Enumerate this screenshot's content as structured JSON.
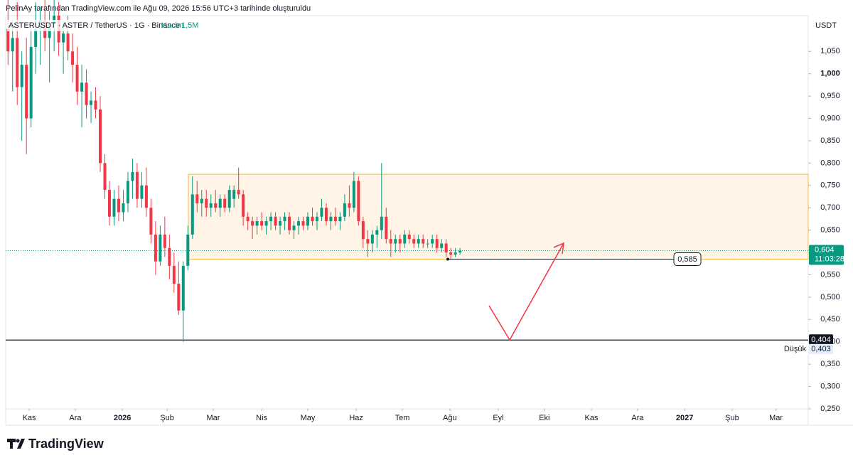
{
  "chart_data": {
    "type": "candlestick",
    "title": "PelinAy tarafından TradingView.com ile Ağu 09, 2026 15:56 UTC+3 tarihinde oluşturuldu",
    "symbol": "ASTERUSDT · ASTER / TetherUS · 1G · Binance",
    "volume_name": "Hacim",
    "volume": {
      "value": 1500000,
      "label": "1,5M"
    },
    "currency": "USDT",
    "brand": "TradingView",
    "up_color": "#089981",
    "down_color": "#f23645",
    "ohlc": [
      [
        1.1,
        1.18,
        1.02,
        1.05
      ],
      [
        1.05,
        1.12,
        0.96,
        1.08
      ],
      [
        1.08,
        1.16,
        0.93,
        0.97
      ],
      [
        0.97,
        1.05,
        0.85,
        1.02
      ],
      [
        1.02,
        1.08,
        0.82,
        0.9
      ],
      [
        0.9,
        1.1,
        0.88,
        1.06
      ],
      [
        1.06,
        1.16,
        1.0,
        1.1
      ],
      [
        1.1,
        1.15,
        1.02,
        1.12
      ],
      [
        1.12,
        1.18,
        1.05,
        1.08
      ],
      [
        1.08,
        1.14,
        0.98,
        1.11
      ],
      [
        1.11,
        1.17,
        1.05,
        1.13
      ],
      [
        1.13,
        1.16,
        1.04,
        1.07
      ],
      [
        1.07,
        1.12,
        1.0,
        1.09
      ],
      [
        1.09,
        1.13,
        1.03,
        1.05
      ],
      [
        1.05,
        1.09,
        0.98,
        1.02
      ],
      [
        1.02,
        1.06,
        0.93,
        0.96
      ],
      [
        0.96,
        1.02,
        0.88,
        0.98
      ],
      [
        0.98,
        1.01,
        0.9,
        0.93
      ],
      [
        0.93,
        0.96,
        0.89,
        0.94
      ],
      [
        0.94,
        0.97,
        0.9,
        0.92
      ],
      [
        0.92,
        0.95,
        0.78,
        0.8
      ],
      [
        0.8,
        0.82,
        0.72,
        0.74
      ],
      [
        0.74,
        0.76,
        0.66,
        0.68
      ],
      [
        0.68,
        0.74,
        0.66,
        0.72
      ],
      [
        0.72,
        0.75,
        0.67,
        0.69
      ],
      [
        0.69,
        0.74,
        0.67,
        0.71
      ],
      [
        0.71,
        0.78,
        0.69,
        0.76
      ],
      [
        0.76,
        0.81,
        0.72,
        0.78
      ],
      [
        0.78,
        0.8,
        0.7,
        0.72
      ],
      [
        0.72,
        0.78,
        0.7,
        0.75
      ],
      [
        0.75,
        0.79,
        0.68,
        0.7
      ],
      [
        0.7,
        0.72,
        0.62,
        0.64
      ],
      [
        0.64,
        0.67,
        0.55,
        0.58
      ],
      [
        0.58,
        0.66,
        0.57,
        0.64
      ],
      [
        0.64,
        0.68,
        0.59,
        0.61
      ],
      [
        0.61,
        0.64,
        0.54,
        0.57
      ],
      [
        0.57,
        0.6,
        0.51,
        0.53
      ],
      [
        0.53,
        0.58,
        0.46,
        0.47
      ],
      [
        0.47,
        0.58,
        0.4,
        0.57
      ],
      [
        0.57,
        0.66,
        0.56,
        0.64
      ],
      [
        0.64,
        0.77,
        0.63,
        0.73
      ],
      [
        0.73,
        0.76,
        0.69,
        0.71
      ],
      [
        0.71,
        0.74,
        0.68,
        0.72
      ],
      [
        0.72,
        0.74,
        0.68,
        0.7
      ],
      [
        0.7,
        0.73,
        0.68,
        0.71
      ],
      [
        0.71,
        0.74,
        0.69,
        0.7
      ],
      [
        0.7,
        0.73,
        0.68,
        0.72
      ],
      [
        0.72,
        0.73,
        0.69,
        0.7
      ],
      [
        0.7,
        0.75,
        0.69,
        0.74
      ],
      [
        0.72,
        0.75,
        0.7,
        0.74
      ],
      [
        0.74,
        0.79,
        0.72,
        0.73
      ],
      [
        0.73,
        0.74,
        0.66,
        0.68
      ],
      [
        0.68,
        0.69,
        0.65,
        0.67
      ],
      [
        0.67,
        0.68,
        0.63,
        0.66
      ],
      [
        0.66,
        0.68,
        0.64,
        0.67
      ],
      [
        0.67,
        0.69,
        0.65,
        0.66
      ],
      [
        0.66,
        0.68,
        0.64,
        0.67
      ],
      [
        0.67,
        0.69,
        0.65,
        0.68
      ],
      [
        0.68,
        0.69,
        0.65,
        0.66
      ],
      [
        0.66,
        0.68,
        0.64,
        0.67
      ],
      [
        0.67,
        0.69,
        0.65,
        0.68
      ],
      [
        0.68,
        0.69,
        0.64,
        0.65
      ],
      [
        0.65,
        0.67,
        0.63,
        0.66
      ],
      [
        0.66,
        0.68,
        0.64,
        0.67
      ],
      [
        0.67,
        0.68,
        0.65,
        0.66
      ],
      [
        0.66,
        0.69,
        0.65,
        0.68
      ],
      [
        0.68,
        0.7,
        0.66,
        0.67
      ],
      [
        0.67,
        0.69,
        0.65,
        0.68
      ],
      [
        0.68,
        0.72,
        0.67,
        0.7
      ],
      [
        0.7,
        0.71,
        0.66,
        0.67
      ],
      [
        0.67,
        0.69,
        0.65,
        0.68
      ],
      [
        0.68,
        0.7,
        0.66,
        0.67
      ],
      [
        0.67,
        0.69,
        0.65,
        0.68
      ],
      [
        0.68,
        0.73,
        0.67,
        0.71
      ],
      [
        0.71,
        0.75,
        0.68,
        0.7
      ],
      [
        0.7,
        0.78,
        0.69,
        0.76
      ],
      [
        0.76,
        0.77,
        0.66,
        0.67
      ],
      [
        0.67,
        0.68,
        0.61,
        0.63
      ],
      [
        0.63,
        0.65,
        0.59,
        0.62
      ],
      [
        0.62,
        0.65,
        0.6,
        0.64
      ],
      [
        0.64,
        0.66,
        0.61,
        0.65
      ],
      [
        0.65,
        0.8,
        0.63,
        0.68
      ],
      [
        0.68,
        0.7,
        0.62,
        0.63
      ],
      [
        0.63,
        0.65,
        0.59,
        0.62
      ],
      [
        0.62,
        0.64,
        0.6,
        0.63
      ],
      [
        0.63,
        0.64,
        0.6,
        0.62
      ],
      [
        0.62,
        0.65,
        0.61,
        0.64
      ],
      [
        0.64,
        0.65,
        0.62,
        0.63
      ],
      [
        0.63,
        0.64,
        0.61,
        0.62
      ],
      [
        0.62,
        0.64,
        0.61,
        0.63
      ],
      [
        0.63,
        0.64,
        0.61,
        0.62
      ],
      [
        0.62,
        0.63,
        0.61,
        0.62
      ],
      [
        0.62,
        0.64,
        0.61,
        0.63
      ],
      [
        0.63,
        0.64,
        0.6,
        0.61
      ],
      [
        0.61,
        0.63,
        0.6,
        0.62
      ],
      [
        0.62,
        0.63,
        0.59,
        0.6
      ],
      [
        0.6,
        0.61,
        0.585,
        0.595
      ],
      [
        0.595,
        0.61,
        0.59,
        0.6
      ],
      [
        0.6,
        0.61,
        0.595,
        0.604
      ]
    ],
    "xlim": [
      0,
      174
    ],
    "xticks": [
      {
        "value": 5.1,
        "label": "Kas"
      },
      {
        "value": 15.1,
        "label": "Ara"
      },
      {
        "value": 25.3,
        "label": "2026"
      },
      {
        "value": 35.0,
        "label": "Şub"
      },
      {
        "value": 45.0,
        "label": "Mar"
      },
      {
        "value": 55.5,
        "label": "Nis"
      },
      {
        "value": 65.5,
        "label": "May"
      },
      {
        "value": 76.0,
        "label": "Haz"
      },
      {
        "value": 86.0,
        "label": "Tem"
      },
      {
        "value": 96.3,
        "label": "Ağu"
      },
      {
        "value": 106.8,
        "label": "Eyl"
      },
      {
        "value": 116.8,
        "label": "Eki"
      },
      {
        "value": 127.0,
        "label": "Kas"
      },
      {
        "value": 137.0,
        "label": "Ara"
      },
      {
        "value": 147.2,
        "label": "2027"
      },
      {
        "value": 157.5,
        "label": "Şub"
      },
      {
        "value": 167.0,
        "label": "Mar"
      }
    ],
    "ylim": [
      0.25,
      1.13
    ],
    "yticks": [
      {
        "value": 0.25,
        "label": "0,250"
      },
      {
        "value": 0.3,
        "label": "0,300"
      },
      {
        "value": 0.35,
        "label": "0,350"
      },
      {
        "value": 0.4,
        "label": "0,400"
      },
      {
        "value": 0.45,
        "label": "0,450"
      },
      {
        "value": 0.5,
        "label": "0,500"
      },
      {
        "value": 0.55,
        "label": "0,550"
      },
      {
        "value": 0.6,
        "label": "0,600"
      },
      {
        "value": 0.65,
        "label": "0,650"
      },
      {
        "value": 0.7,
        "label": "0,700"
      },
      {
        "value": 0.75,
        "label": "0,750"
      },
      {
        "value": 0.8,
        "label": "0,800"
      },
      {
        "value": 0.85,
        "label": "0,850"
      },
      {
        "value": 0.9,
        "label": "0,900"
      },
      {
        "value": 0.95,
        "label": "0,950"
      },
      {
        "value": 1.0,
        "label": "1,000"
      },
      {
        "value": 1.05,
        "label": "1,050"
      }
    ],
    "zone": {
      "low": 0.585,
      "high": 0.775,
      "color": "#f5b942"
    },
    "support": {
      "value": 0.404,
      "label": "0,404"
    },
    "target": {
      "value": 0.585,
      "label": "0,585"
    },
    "last_price": {
      "value": 0.604,
      "label": "0,604",
      "countdown": "11:03:28"
    },
    "low": {
      "name": "Düşük",
      "value": 0.403,
      "label": "0,403"
    }
  }
}
